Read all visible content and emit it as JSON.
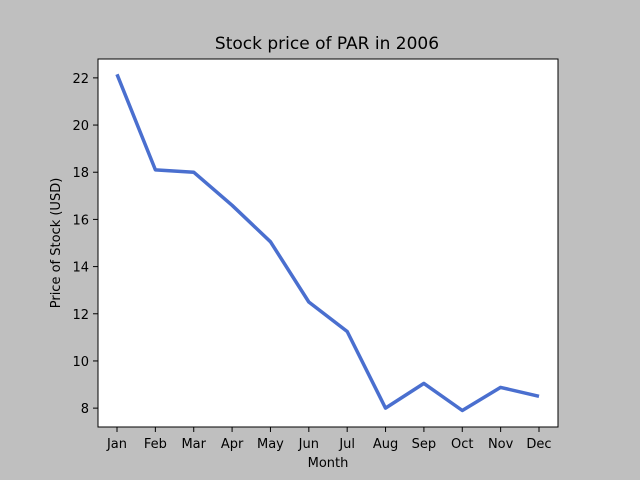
{
  "chart_data": {
    "type": "line",
    "title": "Stock price of PAR in 2006",
    "xlabel": "Month",
    "ylabel": "Price of Stock (USD)",
    "categories": [
      "Jan",
      "Feb",
      "Mar",
      "Apr",
      "May",
      "Jun",
      "Jul",
      "Aug",
      "Sep",
      "Oct",
      "Nov",
      "Dec"
    ],
    "series": [
      {
        "name": "PAR",
        "color": "#4a6fcf",
        "values": [
          22.15,
          18.1,
          18.0,
          16.6,
          15.05,
          12.5,
          11.25,
          8.0,
          9.05,
          7.9,
          8.88,
          8.5
        ]
      }
    ],
    "yticks": [
      8,
      10,
      12,
      14,
      16,
      18,
      20,
      22
    ],
    "ylim": [
      7.2,
      22.8
    ],
    "grid": false,
    "legend": "none"
  }
}
